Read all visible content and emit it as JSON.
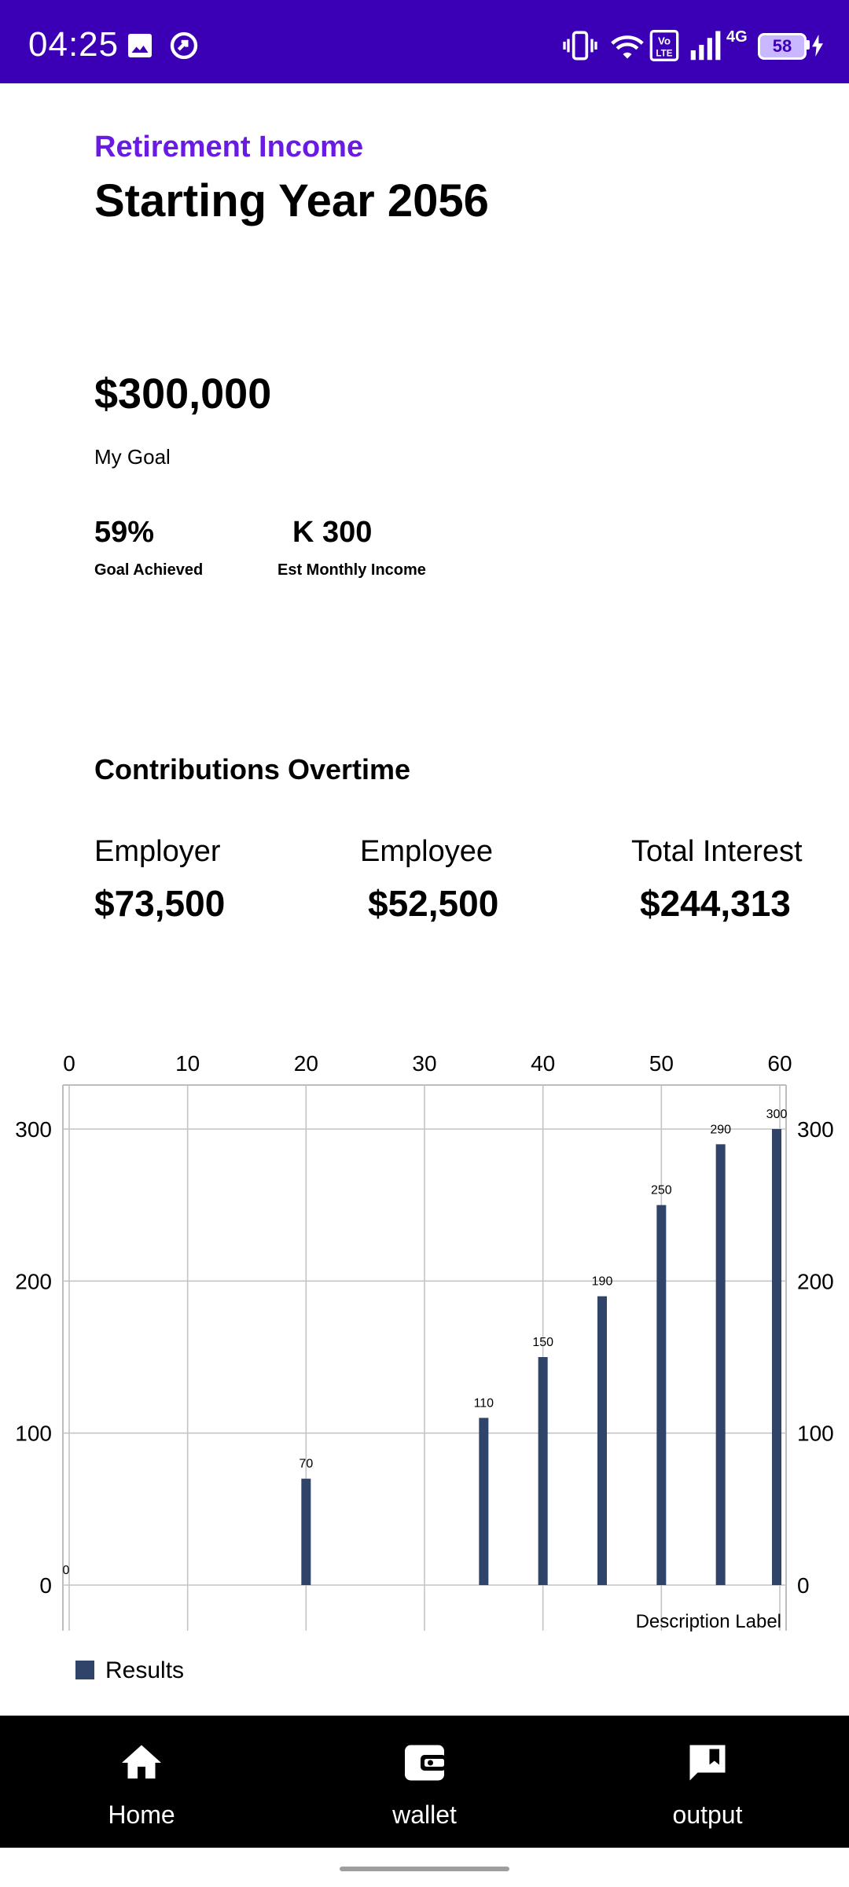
{
  "status_bar": {
    "time": "04:25",
    "network_label": "4G",
    "battery": "58",
    "colors": {
      "background": "#3b00b5"
    },
    "icons": [
      "image-icon",
      "sync-icon",
      "vibrate-icon",
      "wifi-icon",
      "volte-icon",
      "signal-icon",
      "battery-icon",
      "charging-icon"
    ]
  },
  "header": {
    "eyebrow": "Retirement Income",
    "title": "Starting Year 2056"
  },
  "goal": {
    "value": "$300,000",
    "label": "My Goal"
  },
  "stats": [
    {
      "value": "59%",
      "label": "Goal Achieved"
    },
    {
      "value": "K 300",
      "label": "Est Monthly Income"
    }
  ],
  "contributions": {
    "title": "Contributions Overtime",
    "items": [
      {
        "label": "Employer",
        "value": "$73,500"
      },
      {
        "label": "Employee",
        "value": "$52,500"
      },
      {
        "label": "Total Interest",
        "value": "$244,313"
      }
    ]
  },
  "chart_data": {
    "type": "bar",
    "x": [
      0,
      20,
      35,
      40,
      45,
      50,
      55,
      60
    ],
    "series": [
      {
        "name": "Results",
        "values": [
          0,
          70,
          110,
          150,
          190,
          250,
          290,
          300
        ],
        "color": "#2f4468"
      }
    ],
    "xlim": [
      0,
      60
    ],
    "ylim": [
      0,
      300
    ],
    "x_ticks": [
      0,
      10,
      20,
      30,
      40,
      50,
      60
    ],
    "y_ticks": [
      0,
      100,
      200,
      300
    ],
    "x_axis_position": "top",
    "y_axes": "both",
    "grid": true,
    "description": "Description Label",
    "legend_position": "bottom-left"
  },
  "bottom_nav": {
    "items": [
      {
        "label": "Home",
        "icon": "home-icon"
      },
      {
        "label": "wallet",
        "icon": "wallet-icon"
      },
      {
        "label": "output",
        "icon": "feedback-icon"
      }
    ]
  }
}
